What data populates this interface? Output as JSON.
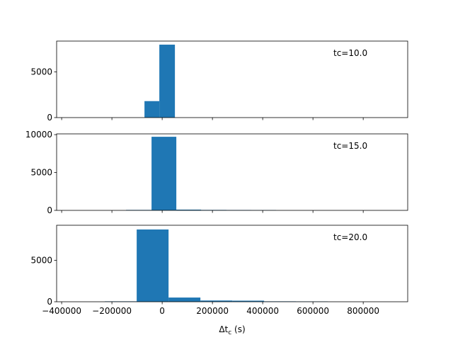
{
  "chart_data": [
    {
      "type": "histogram",
      "annotation": "tc=10.0",
      "color": "#1f77b4",
      "bins": [
        -70400,
        -11300,
        50700
      ],
      "counts": [
        1800,
        7970
      ],
      "xlim": [
        -420000,
        977000
      ],
      "xticks": [
        -400000,
        -200000,
        0,
        200000,
        400000,
        600000,
        800000
      ],
      "ylim": [
        0,
        8360
      ],
      "yticks": [
        0,
        5000
      ]
    },
    {
      "type": "histogram",
      "annotation": "tc=15.0",
      "color": "#1f77b4",
      "bins": [
        -143700,
        -42300,
        56300,
        155000,
        256000,
        355000,
        453500
      ],
      "counts": [
        60,
        9717,
        100,
        60,
        50,
        40
      ],
      "xlim": [
        -420000,
        977000
      ],
      "xticks": [
        -400000,
        -200000,
        0,
        200000,
        400000,
        600000,
        800000
      ],
      "ylim": [
        0,
        10100
      ],
      "yticks": [
        0,
        5000,
        10000
      ]
    },
    {
      "type": "histogram",
      "annotation": "tc=20.0",
      "color": "#1f77b4",
      "bins": [
        -228200,
        -101400,
        25400,
        152100,
        278900,
        405600,
        532400,
        659200
      ],
      "counts": [
        50,
        8729,
        508,
        150,
        130,
        50,
        40
      ],
      "xlim": [
        -420000,
        977000
      ],
      "xticks": [
        {
          "value": -400000,
          "label": "−400000"
        },
        {
          "value": -200000,
          "label": "−200000"
        },
        0,
        200000,
        400000,
        600000,
        800000
      ],
      "xlabel": {
        "base": "Δt",
        "sub": "c",
        "rest": " (s)"
      },
      "ylim": [
        0,
        9240
      ],
      "yticks": [
        0,
        5000
      ]
    }
  ]
}
